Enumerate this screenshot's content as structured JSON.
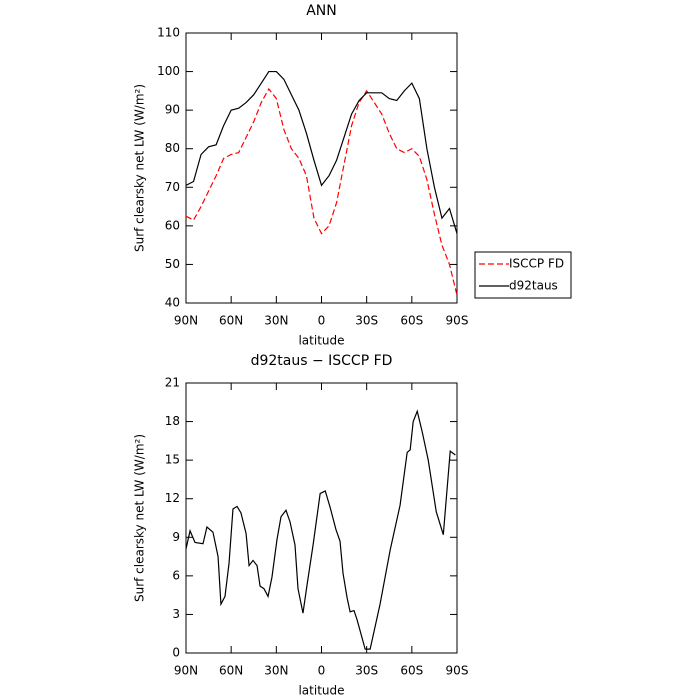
{
  "chart_data": [
    {
      "type": "line",
      "title": "ANN",
      "xlabel": "latitude",
      "ylabel": "Surf clearsky net LW (W/m²)",
      "x": [
        90,
        85,
        80,
        75,
        70,
        65,
        60,
        55,
        50,
        45,
        40,
        35,
        30,
        25,
        20,
        15,
        10,
        5,
        0,
        -5,
        -10,
        -15,
        -20,
        -25,
        -30,
        -35,
        -40,
        -45,
        -50,
        -55,
        -60,
        -65,
        -70,
        -75,
        -80,
        -85,
        -90
      ],
      "series": [
        {
          "name": "ISCCP FD",
          "color": "#ff0000",
          "line_style": "dashed",
          "values": [
            62.5,
            61.5,
            65,
            69,
            73,
            77.5,
            78.5,
            79,
            83,
            87,
            92,
            95.5,
            93,
            85,
            80,
            77.5,
            73,
            62,
            58,
            60,
            66,
            76,
            86,
            92,
            95,
            92,
            89,
            84,
            80,
            79,
            80,
            78,
            72,
            63,
            55,
            50,
            42
          ]
        },
        {
          "name": "d92taus",
          "color": "#000000",
          "line_style": "solid",
          "values": [
            70.5,
            71.5,
            78.5,
            80.5,
            81,
            86,
            90,
            90.5,
            92,
            94,
            97,
            100,
            100,
            98,
            94,
            90,
            84,
            77,
            70.5,
            73,
            77,
            83,
            89,
            92.5,
            94.5,
            94.5,
            94.5,
            93,
            92.5,
            95,
            97,
            93,
            80,
            70,
            62,
            64.5,
            58
          ]
        }
      ],
      "xlim": [
        90,
        -90
      ],
      "xticks": [
        {
          "value": 90,
          "label": "90N"
        },
        {
          "value": 60,
          "label": "60N"
        },
        {
          "value": 30,
          "label": "30N"
        },
        0,
        {
          "value": -30,
          "label": "30S"
        },
        {
          "value": -60,
          "label": "60S"
        },
        {
          "value": -90,
          "label": "90S"
        }
      ],
      "ylim": [
        40,
        110
      ],
      "yticks": [
        40,
        50,
        60,
        70,
        80,
        90,
        100,
        110
      ],
      "legend": "right"
    },
    {
      "type": "line",
      "title": "d92taus − ISCCP FD",
      "xlabel": "latitude",
      "ylabel": "Surf clearsky net LW (W/m²)",
      "x": [
        90,
        87.3,
        84,
        78.7,
        76.1,
        72.1,
        68.7,
        66.8,
        64.1,
        61.4,
        58.8,
        56.1,
        53.5,
        50.1,
        48.1,
        45.5,
        42.8,
        40.8,
        38.2,
        35.5,
        32.9,
        29.6,
        26.9,
        23.6,
        20.9,
        17.6,
        15.6,
        12.3,
        9.6,
        5.6,
        3.6,
        0.9,
        -2.5,
        -5.8,
        -9.6,
        -12.3,
        -14.3,
        -17,
        -19,
        -21.6,
        -23.6,
        -29,
        -32.3,
        -38.9,
        -45.6,
        -52.2,
        -56.9,
        -58.9,
        -60.9,
        -63.6,
        -66.9,
        -70.9,
        -76.2,
        -80.9,
        -85.5,
        -88.9
      ],
      "series": [
        {
          "color": "#000000",
          "line_style": "solid",
          "values": [
            8.1,
            9.5,
            8.6,
            8.5,
            9.8,
            9.4,
            7.5,
            3.8,
            4.4,
            7,
            11.2,
            11.4,
            10.9,
            9.3,
            6.8,
            7.2,
            6.8,
            5.2,
            5,
            4.4,
            5.9,
            8.8,
            10.6,
            11.1,
            10.2,
            8.4,
            5,
            3.1,
            5.3,
            8.4,
            10.1,
            12.4,
            12.6,
            11.3,
            9.6,
            8.7,
            6.2,
            4.3,
            3.2,
            3.3,
            2.6,
            0.3,
            0.3,
            3.8,
            8,
            11.5,
            15.6,
            15.8,
            18,
            18.8,
            17.2,
            15,
            11,
            9.2,
            15.7,
            15.4
          ]
        }
      ],
      "xlim": [
        90,
        -90
      ],
      "xticks": [
        {
          "value": 90,
          "label": "90N"
        },
        {
          "value": 60,
          "label": "60N"
        },
        {
          "value": 30,
          "label": "30N"
        },
        0,
        {
          "value": -30,
          "label": "30S"
        },
        {
          "value": -60,
          "label": "60S"
        },
        {
          "value": -90,
          "label": "90S"
        }
      ],
      "ylim": [
        0,
        21
      ],
      "yticks": [
        0,
        3,
        6,
        9,
        12,
        15,
        18,
        21
      ]
    }
  ]
}
